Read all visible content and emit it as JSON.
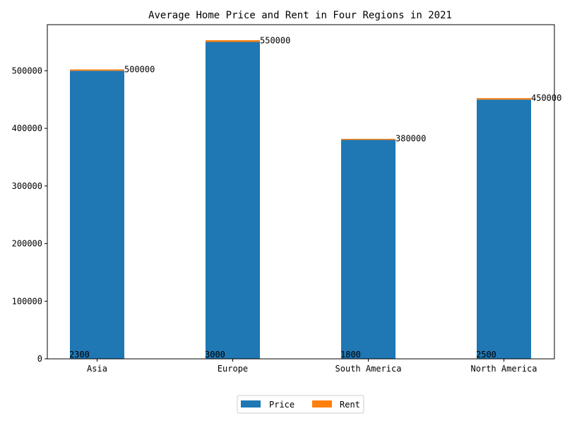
{
  "chart_data": {
    "type": "bar",
    "title": "Average Home Price and Rent in Four Regions in 2021",
    "xlabel": "",
    "ylabel": "",
    "categories": [
      "Asia",
      "Europe",
      "South America",
      "North America"
    ],
    "series": [
      {
        "name": "Price",
        "values": [
          500000,
          550000,
          380000,
          450000
        ],
        "color": "#1f77b4"
      },
      {
        "name": "Rent",
        "values": [
          2300,
          3000,
          1800,
          2500
        ],
        "color": "#ff7f0e"
      }
    ],
    "stacked": true,
    "ylim": [
      0,
      580000
    ],
    "yticks": [
      0,
      100000,
      200000,
      300000,
      400000,
      500000
    ],
    "ytick_labels": [
      "0",
      "100000",
      "200000",
      "300000",
      "400000",
      "500000"
    ],
    "grid": false,
    "legend_position": "bottom-center"
  }
}
